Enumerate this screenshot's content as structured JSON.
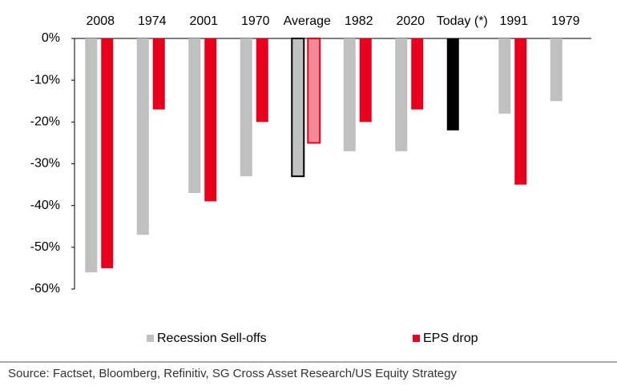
{
  "chart_data": {
    "type": "bar",
    "categories": [
      "2008",
      "1974",
      "2001",
      "1970",
      "Average",
      "1982",
      "2020",
      "Today (*)",
      "1991",
      "1979"
    ],
    "series": [
      {
        "name": "Recession Sell-offs",
        "color": "#c0c0c0",
        "values": [
          -56,
          -47,
          -37,
          -33,
          -33,
          -27,
          -27,
          -22,
          -18,
          -15
        ],
        "colors": [
          "#c0c0c0",
          "#c0c0c0",
          "#c0c0c0",
          "#c0c0c0",
          "#c0c0c0",
          "#c0c0c0",
          "#c0c0c0",
          "#000000",
          "#c0c0c0",
          "#c0c0c0"
        ],
        "outline": [
          null,
          null,
          null,
          null,
          "#000000",
          null,
          null,
          null,
          null,
          null
        ]
      },
      {
        "name": "EPS drop",
        "color": "#e8001c",
        "values": [
          -55,
          -17,
          -39,
          -20,
          -25,
          -20,
          -17,
          null,
          -35,
          null
        ],
        "colors": [
          "#e8001c",
          "#e8001c",
          "#e8001c",
          "#e8001c",
          "#f48a96",
          "#e8001c",
          "#e8001c",
          "#e8001c",
          "#e8001c",
          "#e8001c"
        ],
        "outline": [
          null,
          null,
          null,
          null,
          "#e8001c",
          null,
          null,
          null,
          null,
          null
        ]
      }
    ],
    "ylim": [
      -60,
      0
    ],
    "yticks": [
      {
        "value": 0,
        "label": "0%"
      },
      {
        "value": -10,
        "label": "-10%"
      },
      {
        "value": -20,
        "label": "-20%"
      },
      {
        "value": -30,
        "label": "-30%"
      },
      {
        "value": -40,
        "label": "-40%"
      },
      {
        "value": -50,
        "label": "-50%"
      },
      {
        "value": -60,
        "label": "-60%"
      }
    ],
    "legend": "bottom",
    "source": "Source: Factset, Bloomberg, Refinitiv, SG Cross Asset Research/US Equity Strategy"
  }
}
